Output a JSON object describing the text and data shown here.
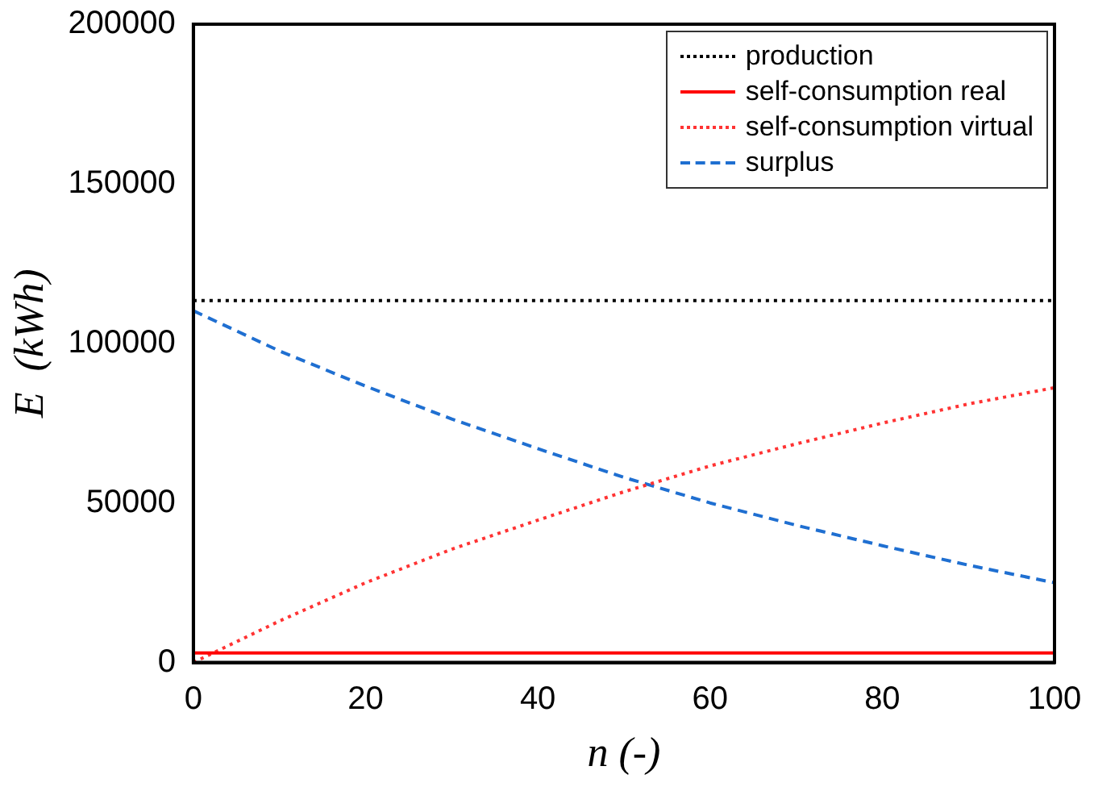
{
  "chart_data": {
    "type": "line",
    "xlabel": "n (-)",
    "ylabel": "E  (kWh)",
    "x": [
      0,
      10,
      20,
      30,
      40,
      50,
      60,
      70,
      80,
      90,
      100
    ],
    "xlim": [
      0,
      100
    ],
    "xticks": [
      0,
      20,
      40,
      60,
      80,
      100
    ],
    "ylim": [
      0,
      200000
    ],
    "yticks": [
      0,
      50000,
      100000,
      150000,
      200000
    ],
    "grid": false,
    "legend": "top right",
    "marker": "none",
    "series": [
      {
        "name": "production",
        "color": "#000000",
        "line_style": "dotted",
        "values": [
          113400,
          113400,
          113400,
          113400,
          113400,
          113400,
          113400,
          113400,
          113400,
          113400,
          113400
        ]
      },
      {
        "name": "self-consumption real",
        "color": "#ff0000",
        "line_style": "solid",
        "values": [
          3000,
          3000,
          3000,
          3000,
          3000,
          3000,
          3000,
          3000,
          3000,
          3000,
          3000
        ]
      },
      {
        "name": "self-consumption virtual",
        "color": "#ff3333",
        "line_style": "dotted",
        "values": [
          0,
          13000,
          25000,
          35500,
          44600,
          53500,
          61600,
          68500,
          75000,
          81000,
          86100
        ]
      },
      {
        "name": "surplus",
        "color": "#1f6fd1",
        "line_style": "dashed",
        "values": [
          110200,
          97600,
          86600,
          76300,
          67000,
          58000,
          50000,
          43000,
          36600,
          30500,
          25000
        ]
      }
    ]
  }
}
